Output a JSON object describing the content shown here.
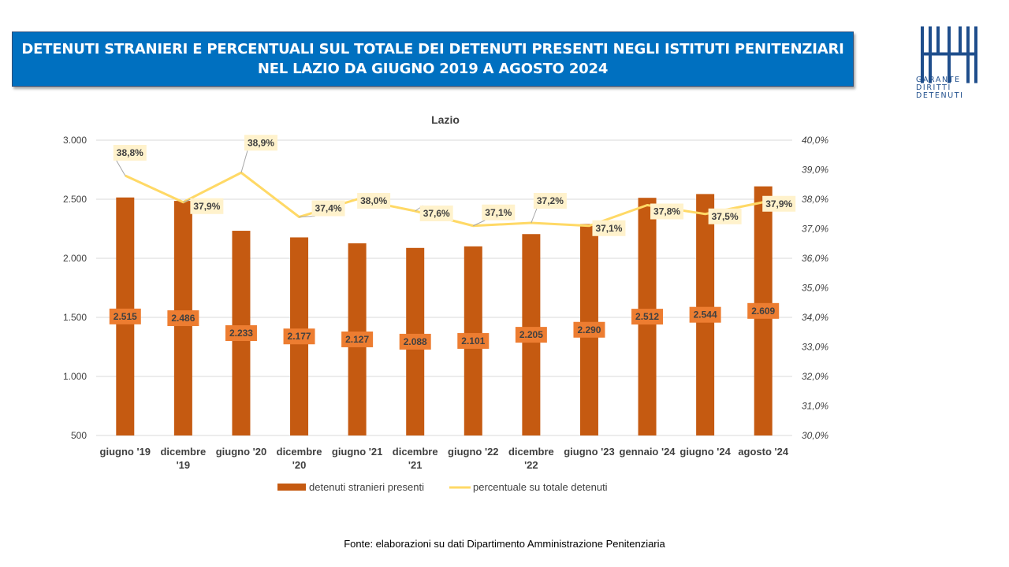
{
  "header": {
    "title_line1": "DETENUTI STRANIERI E PERCENTUALI SUL TOTALE DEI DETENUTI PRESENTI NEGLI ISTITUTI PENITENZIARI",
    "title_line2": "NEL LAZIO DA GIUGNO 2019 A AGOSTO 2024"
  },
  "logo": {
    "icon": "garante-diritti-detenuti-logo",
    "line1": "GARANTE",
    "line2": "DIRITTI",
    "line3": "DETENUTI",
    "color": "#1f4e8c"
  },
  "source": "Fonte: elaborazioni su dati Dipartimento Amministrazione Penitenziaria",
  "chart_data": {
    "type": "bar",
    "title": "Lazio",
    "categories": [
      [
        "giugno '19"
      ],
      [
        "dicembre",
        "'19"
      ],
      [
        "giugno '20"
      ],
      [
        "dicembre",
        "'20"
      ],
      [
        "giugno '21"
      ],
      [
        "dicembre",
        "'21"
      ],
      [
        "giugno '22"
      ],
      [
        "dicembre",
        "'22"
      ],
      [
        "giugno '23"
      ],
      [
        "gennaio '24"
      ],
      [
        "giugno '24"
      ],
      [
        "agosto '24"
      ]
    ],
    "series": [
      {
        "name": "detenuti stranieri presenti",
        "type": "bar",
        "axis": "left",
        "color": "#c55a11",
        "label_bg": "#ed7d31",
        "values": [
          2515,
          2486,
          2233,
          2177,
          2127,
          2088,
          2101,
          2205,
          2290,
          2512,
          2544,
          2609
        ],
        "labels": [
          "2.515",
          "2.486",
          "2.233",
          "2.177",
          "2.127",
          "2.088",
          "2.101",
          "2.205",
          "2.290",
          "2.512",
          "2.544",
          "2.609"
        ]
      },
      {
        "name": "percentuale su totale detenuti",
        "type": "line",
        "axis": "right",
        "color": "#ffd966",
        "label_bg": "#fff2cc",
        "values": [
          38.8,
          37.9,
          38.9,
          37.4,
          38.0,
          37.6,
          37.1,
          37.2,
          37.1,
          37.8,
          37.5,
          37.9
        ],
        "labels": [
          "38,8%",
          "37,9%",
          "38,9%",
          "37,4%",
          "38,0%",
          "37,6%",
          "37,1%",
          "37,2%",
          "37,1%",
          "37,8%",
          "37,5%",
          "37,9%"
        ]
      }
    ],
    "y_left": {
      "min": 500,
      "max": 3000,
      "ticks": [
        "500",
        "1.000",
        "1.500",
        "2.000",
        "2.500",
        "3.000"
      ]
    },
    "y_right": {
      "min": 30,
      "max": 40,
      "ticks": [
        "30,0%",
        "31,0%",
        "32,0%",
        "33,0%",
        "34,0%",
        "35,0%",
        "36,0%",
        "37,0%",
        "38,0%",
        "39,0%",
        "40,0%"
      ]
    },
    "grid": true,
    "legend_position": "bottom"
  }
}
